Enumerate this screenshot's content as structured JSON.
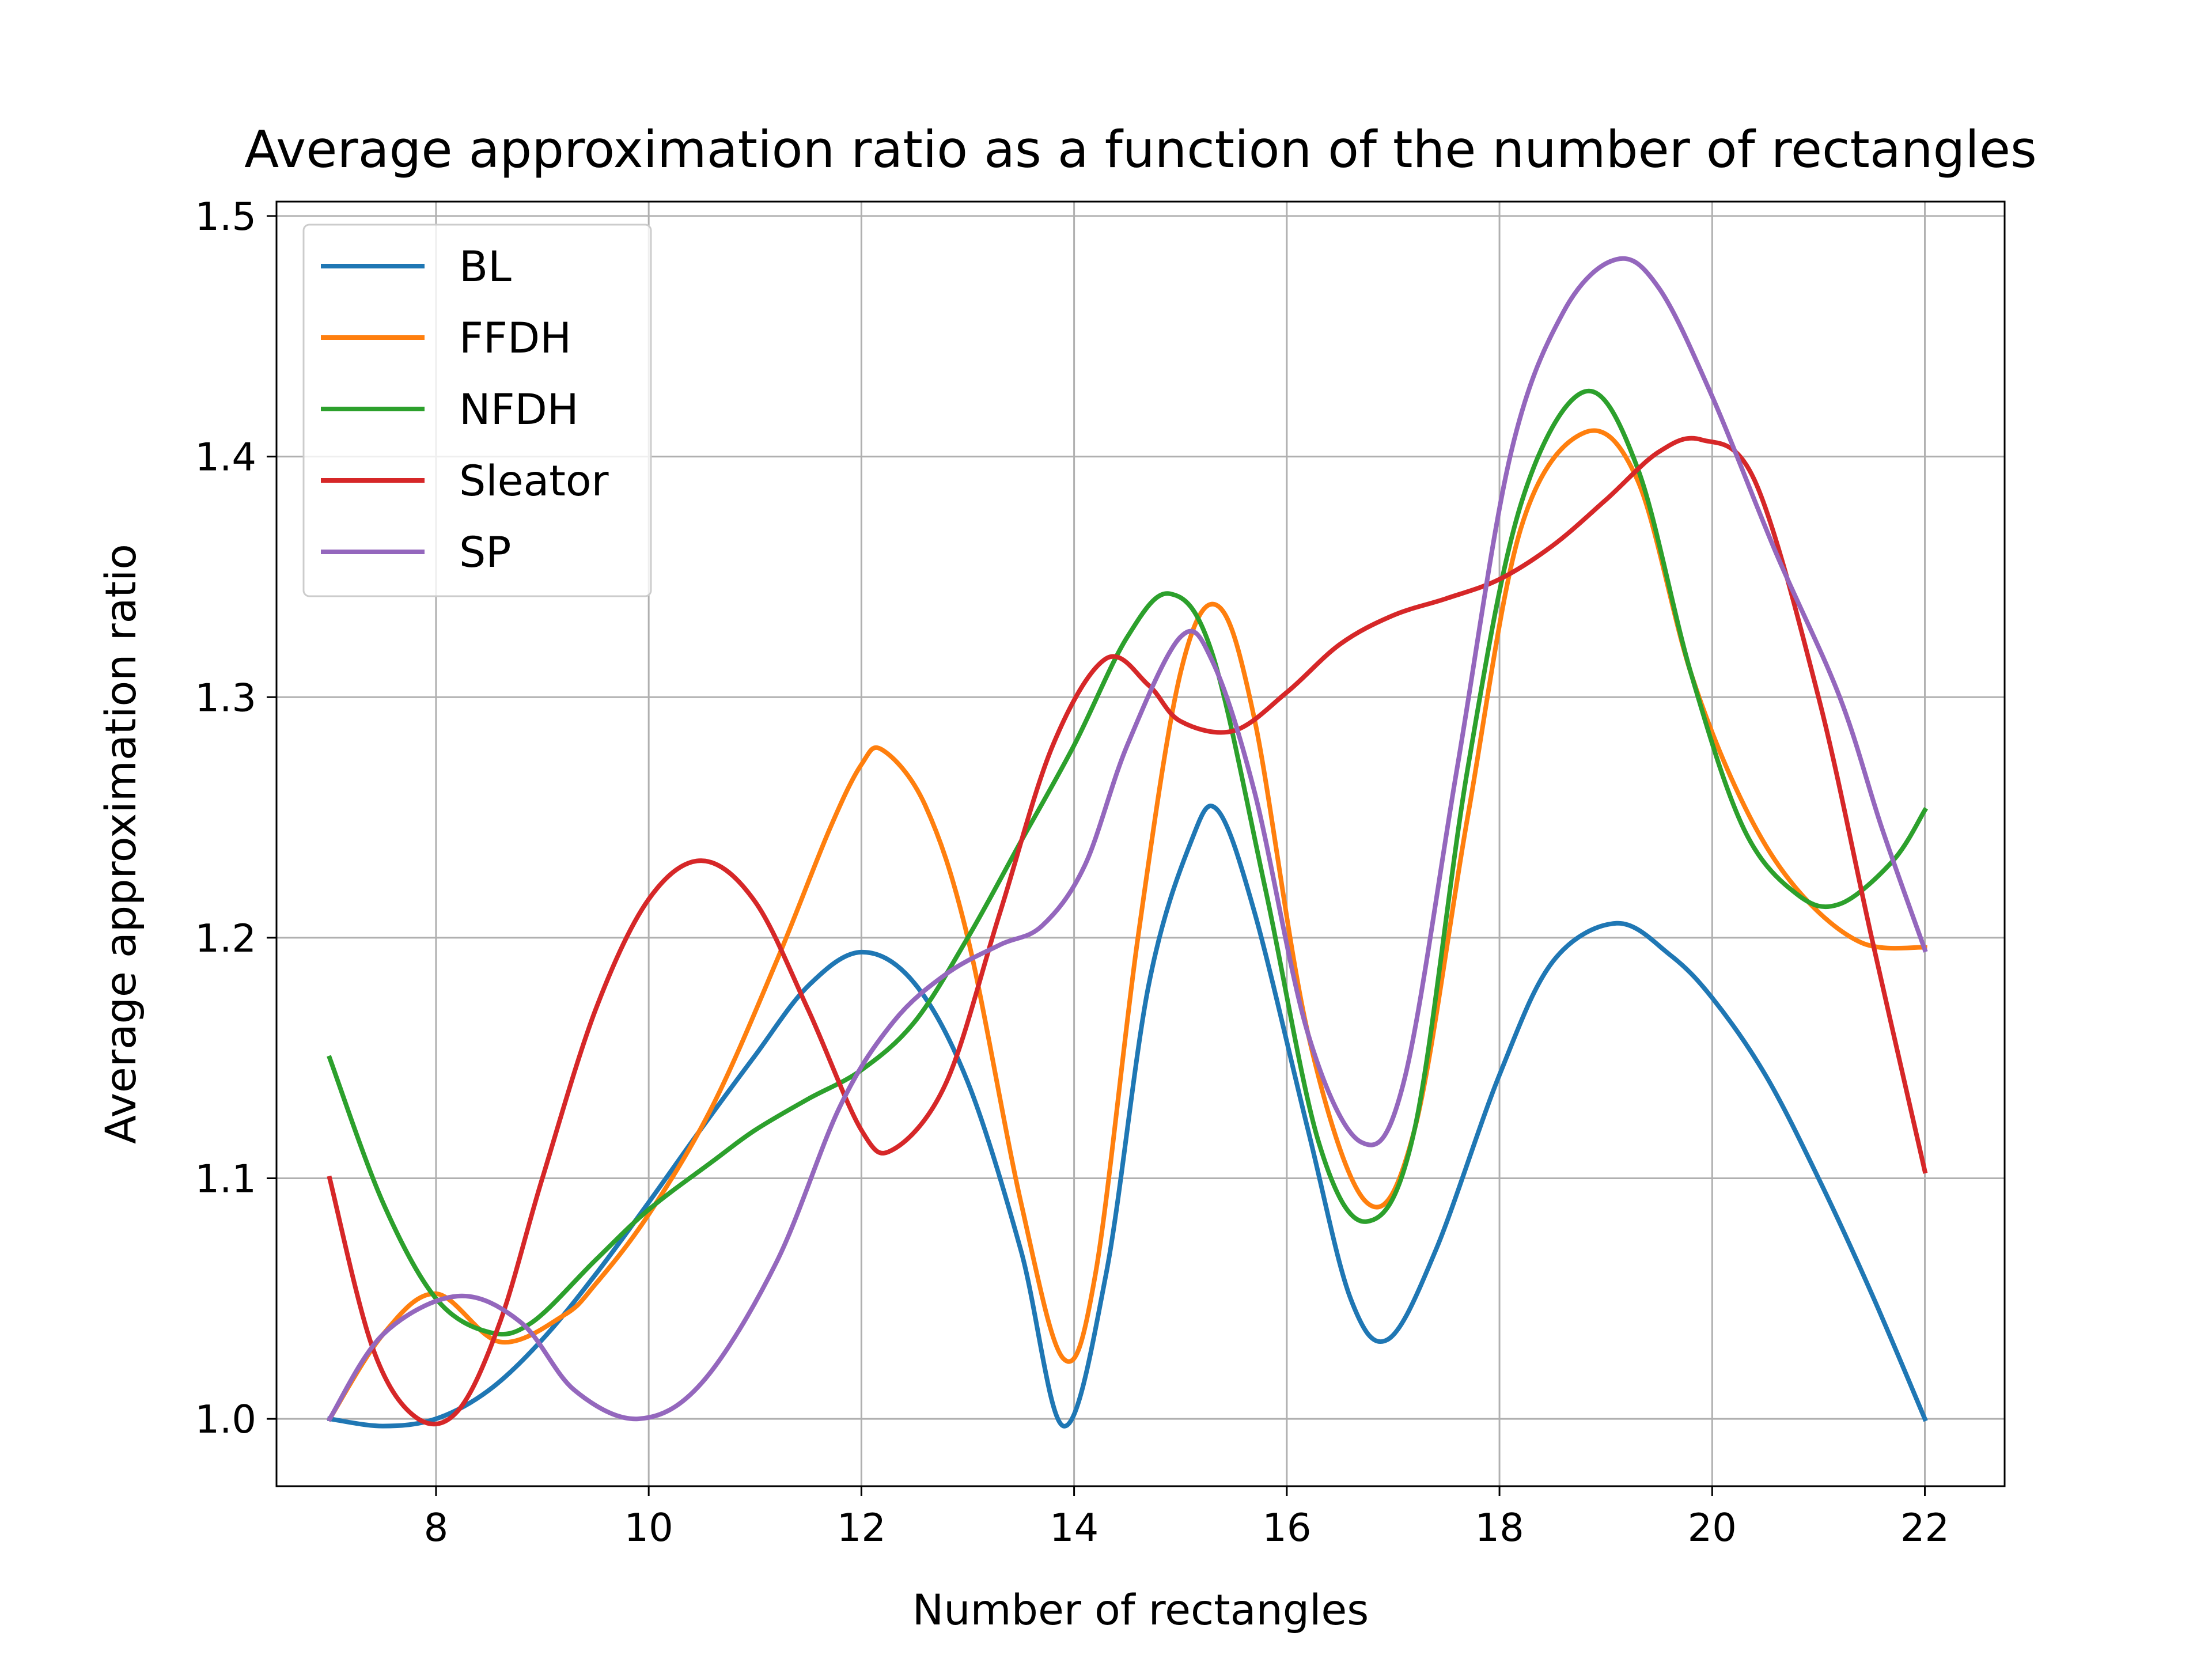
{
  "chart_data": {
    "type": "line",
    "title": "Average approximation ratio as a function of the number of rectangles",
    "xlabel": "Number of rectangles",
    "ylabel": "Average approximation ratio",
    "xlim": [
      6.5,
      22.75
    ],
    "ylim": [
      0.972,
      1.506
    ],
    "x_ticks": [
      8,
      10,
      12,
      14,
      16,
      18,
      20,
      22
    ],
    "y_ticks": [
      1.0,
      1.1,
      1.2,
      1.3,
      1.4,
      1.5
    ],
    "x_tick_labels": [
      "8",
      "10",
      "12",
      "14",
      "16",
      "18",
      "20",
      "22"
    ],
    "y_tick_labels": [
      "1.0",
      "1.1",
      "1.2",
      "1.3",
      "1.4",
      "1.5"
    ],
    "grid": true,
    "legend_position": "upper-left",
    "series": [
      {
        "name": "BL",
        "color": "#1f77b4",
        "points": [
          [
            7,
            1.0
          ],
          [
            7.5,
            0.997
          ],
          [
            8,
            1.0
          ],
          [
            8.5,
            1.012
          ],
          [
            9,
            1.033
          ],
          [
            9.5,
            1.06
          ],
          [
            10,
            1.09
          ],
          [
            10.5,
            1.121
          ],
          [
            11,
            1.151
          ],
          [
            11.5,
            1.18
          ],
          [
            12,
            1.194
          ],
          [
            12.5,
            1.181
          ],
          [
            13,
            1.14
          ],
          [
            13.5,
            1.07
          ],
          [
            13.9,
            0.997
          ],
          [
            14.3,
            1.06
          ],
          [
            14.7,
            1.18
          ],
          [
            15.1,
            1.24
          ],
          [
            15.35,
            1.253
          ],
          [
            15.7,
            1.21
          ],
          [
            16.2,
            1.12
          ],
          [
            16.6,
            1.05
          ],
          [
            16.95,
            1.033
          ],
          [
            17.4,
            1.07
          ],
          [
            18,
            1.143
          ],
          [
            18.5,
            1.19
          ],
          [
            19.1,
            1.206
          ],
          [
            19.6,
            1.193
          ],
          [
            20,
            1.175
          ],
          [
            20.5,
            1.143
          ],
          [
            21,
            1.1
          ],
          [
            21.5,
            1.052
          ],
          [
            22,
            1.0
          ]
        ]
      },
      {
        "name": "FFDH",
        "color": "#ff7f0e",
        "points": [
          [
            7,
            1.0
          ],
          [
            7.5,
            1.035
          ],
          [
            8,
            1.052
          ],
          [
            8.6,
            1.032
          ],
          [
            9.2,
            1.043
          ],
          [
            9.5,
            1.056
          ],
          [
            10,
            1.085
          ],
          [
            10.6,
            1.13
          ],
          [
            11.2,
            1.19
          ],
          [
            11.7,
            1.245
          ],
          [
            12,
            1.272
          ],
          [
            12.2,
            1.278
          ],
          [
            12.6,
            1.255
          ],
          [
            13,
            1.2
          ],
          [
            13.5,
            1.09
          ],
          [
            13.9,
            1.025
          ],
          [
            14.2,
            1.06
          ],
          [
            14.6,
            1.2
          ],
          [
            15,
            1.31
          ],
          [
            15.35,
            1.338
          ],
          [
            15.7,
            1.29
          ],
          [
            16.2,
            1.16
          ],
          [
            16.75,
            1.09
          ],
          [
            17.2,
            1.12
          ],
          [
            17.7,
            1.25
          ],
          [
            18.2,
            1.37
          ],
          [
            18.8,
            1.41
          ],
          [
            19.3,
            1.39
          ],
          [
            19.8,
            1.31
          ],
          [
            20.3,
            1.255
          ],
          [
            20.8,
            1.22
          ],
          [
            21.4,
            1.198
          ],
          [
            22,
            1.196
          ]
        ]
      },
      {
        "name": "NFDH",
        "color": "#2ca02c",
        "points": [
          [
            7,
            1.15
          ],
          [
            7.5,
            1.09
          ],
          [
            8,
            1.05
          ],
          [
            8.5,
            1.036
          ],
          [
            8.9,
            1.04
          ],
          [
            9.5,
            1.066
          ],
          [
            10,
            1.087
          ],
          [
            10.6,
            1.107
          ],
          [
            11,
            1.12
          ],
          [
            11.5,
            1.133
          ],
          [
            12,
            1.145
          ],
          [
            12.5,
            1.165
          ],
          [
            13,
            1.2
          ],
          [
            13.5,
            1.24
          ],
          [
            14,
            1.28
          ],
          [
            14.5,
            1.325
          ],
          [
            14.9,
            1.343
          ],
          [
            15.3,
            1.318
          ],
          [
            15.8,
            1.22
          ],
          [
            16.3,
            1.115
          ],
          [
            16.75,
            1.082
          ],
          [
            17.2,
            1.12
          ],
          [
            17.7,
            1.27
          ],
          [
            18.2,
            1.38
          ],
          [
            18.8,
            1.427
          ],
          [
            19.3,
            1.395
          ],
          [
            19.8,
            1.31
          ],
          [
            20.3,
            1.245
          ],
          [
            20.8,
            1.218
          ],
          [
            21.2,
            1.214
          ],
          [
            21.7,
            1.232
          ],
          [
            22,
            1.253
          ]
        ]
      },
      {
        "name": "Sleator",
        "color": "#d62728",
        "points": [
          [
            7,
            1.1
          ],
          [
            7.4,
            1.03
          ],
          [
            7.8,
            1.001
          ],
          [
            8.2,
            1.003
          ],
          [
            8.6,
            1.04
          ],
          [
            9,
            1.1
          ],
          [
            9.5,
            1.17
          ],
          [
            10,
            1.216
          ],
          [
            10.5,
            1.232
          ],
          [
            11,
            1.215
          ],
          [
            11.5,
            1.17
          ],
          [
            12,
            1.12
          ],
          [
            12.3,
            1.112
          ],
          [
            12.8,
            1.14
          ],
          [
            13.3,
            1.21
          ],
          [
            13.8,
            1.28
          ],
          [
            14.3,
            1.316
          ],
          [
            14.7,
            1.305
          ],
          [
            15,
            1.29
          ],
          [
            15.5,
            1.286
          ],
          [
            16,
            1.302
          ],
          [
            16.5,
            1.322
          ],
          [
            17,
            1.334
          ],
          [
            17.5,
            1.341
          ],
          [
            18,
            1.349
          ],
          [
            18.5,
            1.363
          ],
          [
            19,
            1.382
          ],
          [
            19.5,
            1.402
          ],
          [
            19.9,
            1.407
          ],
          [
            20.4,
            1.39
          ],
          [
            21,
            1.3
          ],
          [
            21.5,
            1.2
          ],
          [
            22,
            1.103
          ]
        ]
      },
      {
        "name": "SP",
        "color": "#9467bd",
        "points": [
          [
            7,
            1.0
          ],
          [
            7.5,
            1.035
          ],
          [
            8.2,
            1.051
          ],
          [
            8.8,
            1.04
          ],
          [
            9.3,
            1.012
          ],
          [
            9.9,
            1.0
          ],
          [
            10.5,
            1.015
          ],
          [
            11.2,
            1.065
          ],
          [
            11.8,
            1.13
          ],
          [
            12.3,
            1.165
          ],
          [
            12.8,
            1.185
          ],
          [
            13.3,
            1.197
          ],
          [
            13.7,
            1.205
          ],
          [
            14.1,
            1.23
          ],
          [
            14.5,
            1.28
          ],
          [
            15,
            1.325
          ],
          [
            15.3,
            1.315
          ],
          [
            15.7,
            1.26
          ],
          [
            16.2,
            1.16
          ],
          [
            16.7,
            1.115
          ],
          [
            17.1,
            1.14
          ],
          [
            17.6,
            1.27
          ],
          [
            18.1,
            1.4
          ],
          [
            18.6,
            1.46
          ],
          [
            19.1,
            1.482
          ],
          [
            19.5,
            1.47
          ],
          [
            20,
            1.425
          ],
          [
            20.6,
            1.36
          ],
          [
            21.2,
            1.3
          ],
          [
            21.6,
            1.245
          ],
          [
            22,
            1.195
          ]
        ]
      }
    ]
  }
}
